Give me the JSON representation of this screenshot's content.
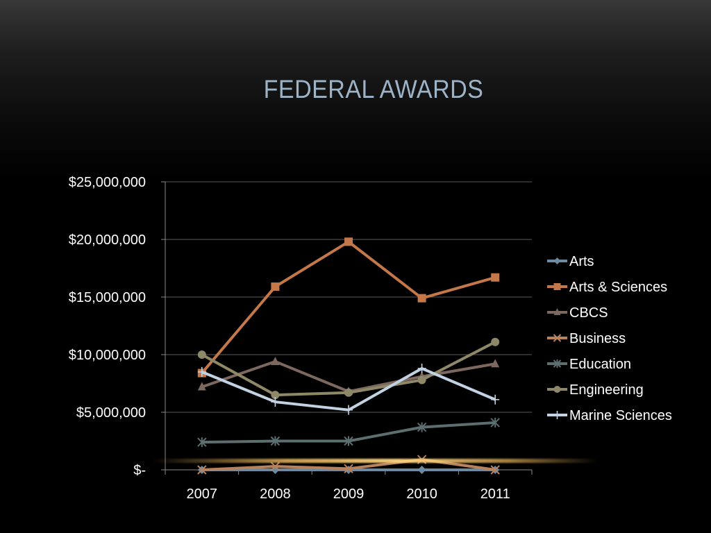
{
  "slide": {
    "title": "FEDERAL AWARDS"
  },
  "chart_data": {
    "type": "line",
    "title": "",
    "xlabel": "",
    "ylabel": "",
    "categories": [
      "2007",
      "2008",
      "2009",
      "2010",
      "2011"
    ],
    "ylim": [
      0,
      25000000
    ],
    "y_ticks": [
      {
        "value": 0,
        "label": "$-"
      },
      {
        "value": 5000000,
        "label": "$5,000,000"
      },
      {
        "value": 10000000,
        "label": "$10,000,000"
      },
      {
        "value": 15000000,
        "label": "$15,000,000"
      },
      {
        "value": 20000000,
        "label": "$20,000,000"
      },
      {
        "value": 25000000,
        "label": "$25,000,000"
      }
    ],
    "grid": true,
    "legend_position": "right",
    "series": [
      {
        "name": "Arts",
        "color": "#6d8aa3",
        "marker": "diamond",
        "values": [
          0,
          0,
          0,
          0,
          0
        ]
      },
      {
        "name": "Arts & Sciences",
        "color": "#c4784a",
        "marker": "square",
        "values": [
          8400000,
          15900000,
          19800000,
          14900000,
          16700000
        ]
      },
      {
        "name": "CBCS",
        "color": "#7d6860",
        "marker": "triangle",
        "values": [
          7200000,
          9400000,
          6800000,
          8100000,
          9200000
        ]
      },
      {
        "name": "Business",
        "color": "#b7825c",
        "marker": "x",
        "values": [
          0,
          300000,
          100000,
          900000,
          0
        ]
      },
      {
        "name": "Education",
        "color": "#5d6e70",
        "marker": "star",
        "values": [
          2400000,
          2500000,
          2500000,
          3700000,
          4100000
        ]
      },
      {
        "name": "Engineering",
        "color": "#8f8868",
        "marker": "circle",
        "values": [
          10000000,
          6500000,
          6700000,
          7800000,
          11100000
        ]
      },
      {
        "name": "Marine Sciences",
        "color": "#c2d2e3",
        "marker": "plus",
        "values": [
          8500000,
          5900000,
          5200000,
          8800000,
          6100000
        ]
      }
    ]
  }
}
